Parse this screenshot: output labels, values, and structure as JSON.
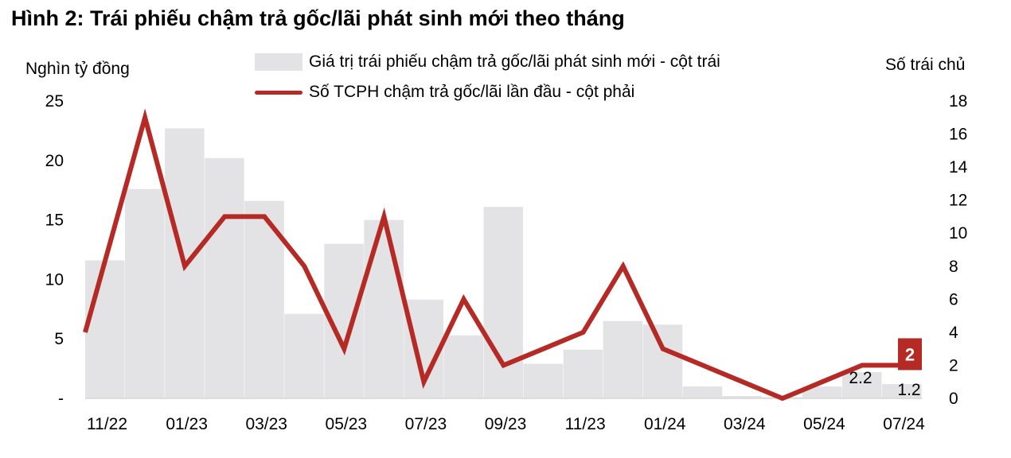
{
  "title": "Hình 2: Trái phiếu chậm trả gốc/lãi phát sinh mới theo tháng",
  "left_axis_title": "Nghìn tỷ đồng",
  "right_axis_title": "Số trái chủ",
  "legend": {
    "bar": "Giá trị trái phiếu chậm trả gốc/lãi phát sinh mới - cột trái",
    "line": "Số TCPH chậm trả gốc/lãi lần đầu - cột phải"
  },
  "colors": {
    "bar": "#e3e3e5",
    "line": "#b52a24",
    "badge": "#b52a24"
  },
  "chart_data": {
    "type": "bar",
    "categories": [
      "11/22",
      "12/22",
      "01/23",
      "02/23",
      "03/23",
      "04/23",
      "05/23",
      "06/23",
      "07/23",
      "08/23",
      "09/23",
      "10/23",
      "11/23",
      "12/23",
      "01/24",
      "02/24",
      "03/24",
      "04/24",
      "05/24",
      "06/24",
      "07/24"
    ],
    "x_tick_labels": [
      "11/22",
      "01/23",
      "03/23",
      "05/23",
      "07/23",
      "09/23",
      "11/23",
      "01/24",
      "03/24",
      "05/24",
      "07/24"
    ],
    "series": [
      {
        "name": "Giá trị trái phiếu chậm trả gốc/lãi phát sinh mới - cột trái",
        "type": "bar",
        "axis": "left",
        "values": [
          11.6,
          17.6,
          22.7,
          20.2,
          16.6,
          7.1,
          13.0,
          15.0,
          8.3,
          5.3,
          16.1,
          2.9,
          4.1,
          6.5,
          6.2,
          1.0,
          0.2,
          0.1,
          1.0,
          2.2,
          1.2
        ]
      },
      {
        "name": "Số TCPH chậm trả gốc/lãi lần đầu - cột phải",
        "type": "line",
        "axis": "right",
        "values": [
          4,
          17,
          8,
          11,
          11,
          8,
          3,
          11,
          1,
          6,
          2,
          3,
          4,
          8,
          3,
          2,
          1,
          0,
          1,
          2,
          2
        ]
      }
    ],
    "y_left": {
      "ticks": [
        "-",
        "5",
        "10",
        "15",
        "20",
        "25"
      ],
      "ylim": [
        0,
        25
      ]
    },
    "y_right": {
      "ticks": [
        "0",
        "2",
        "4",
        "6",
        "8",
        "10",
        "12",
        "14",
        "16",
        "18"
      ],
      "ylim": [
        0,
        18
      ]
    },
    "data_labels": [
      {
        "text": "2.2"
      },
      {
        "text": "1.2"
      },
      {
        "text": "2"
      }
    ],
    "grid": false,
    "legend_position": "top"
  }
}
